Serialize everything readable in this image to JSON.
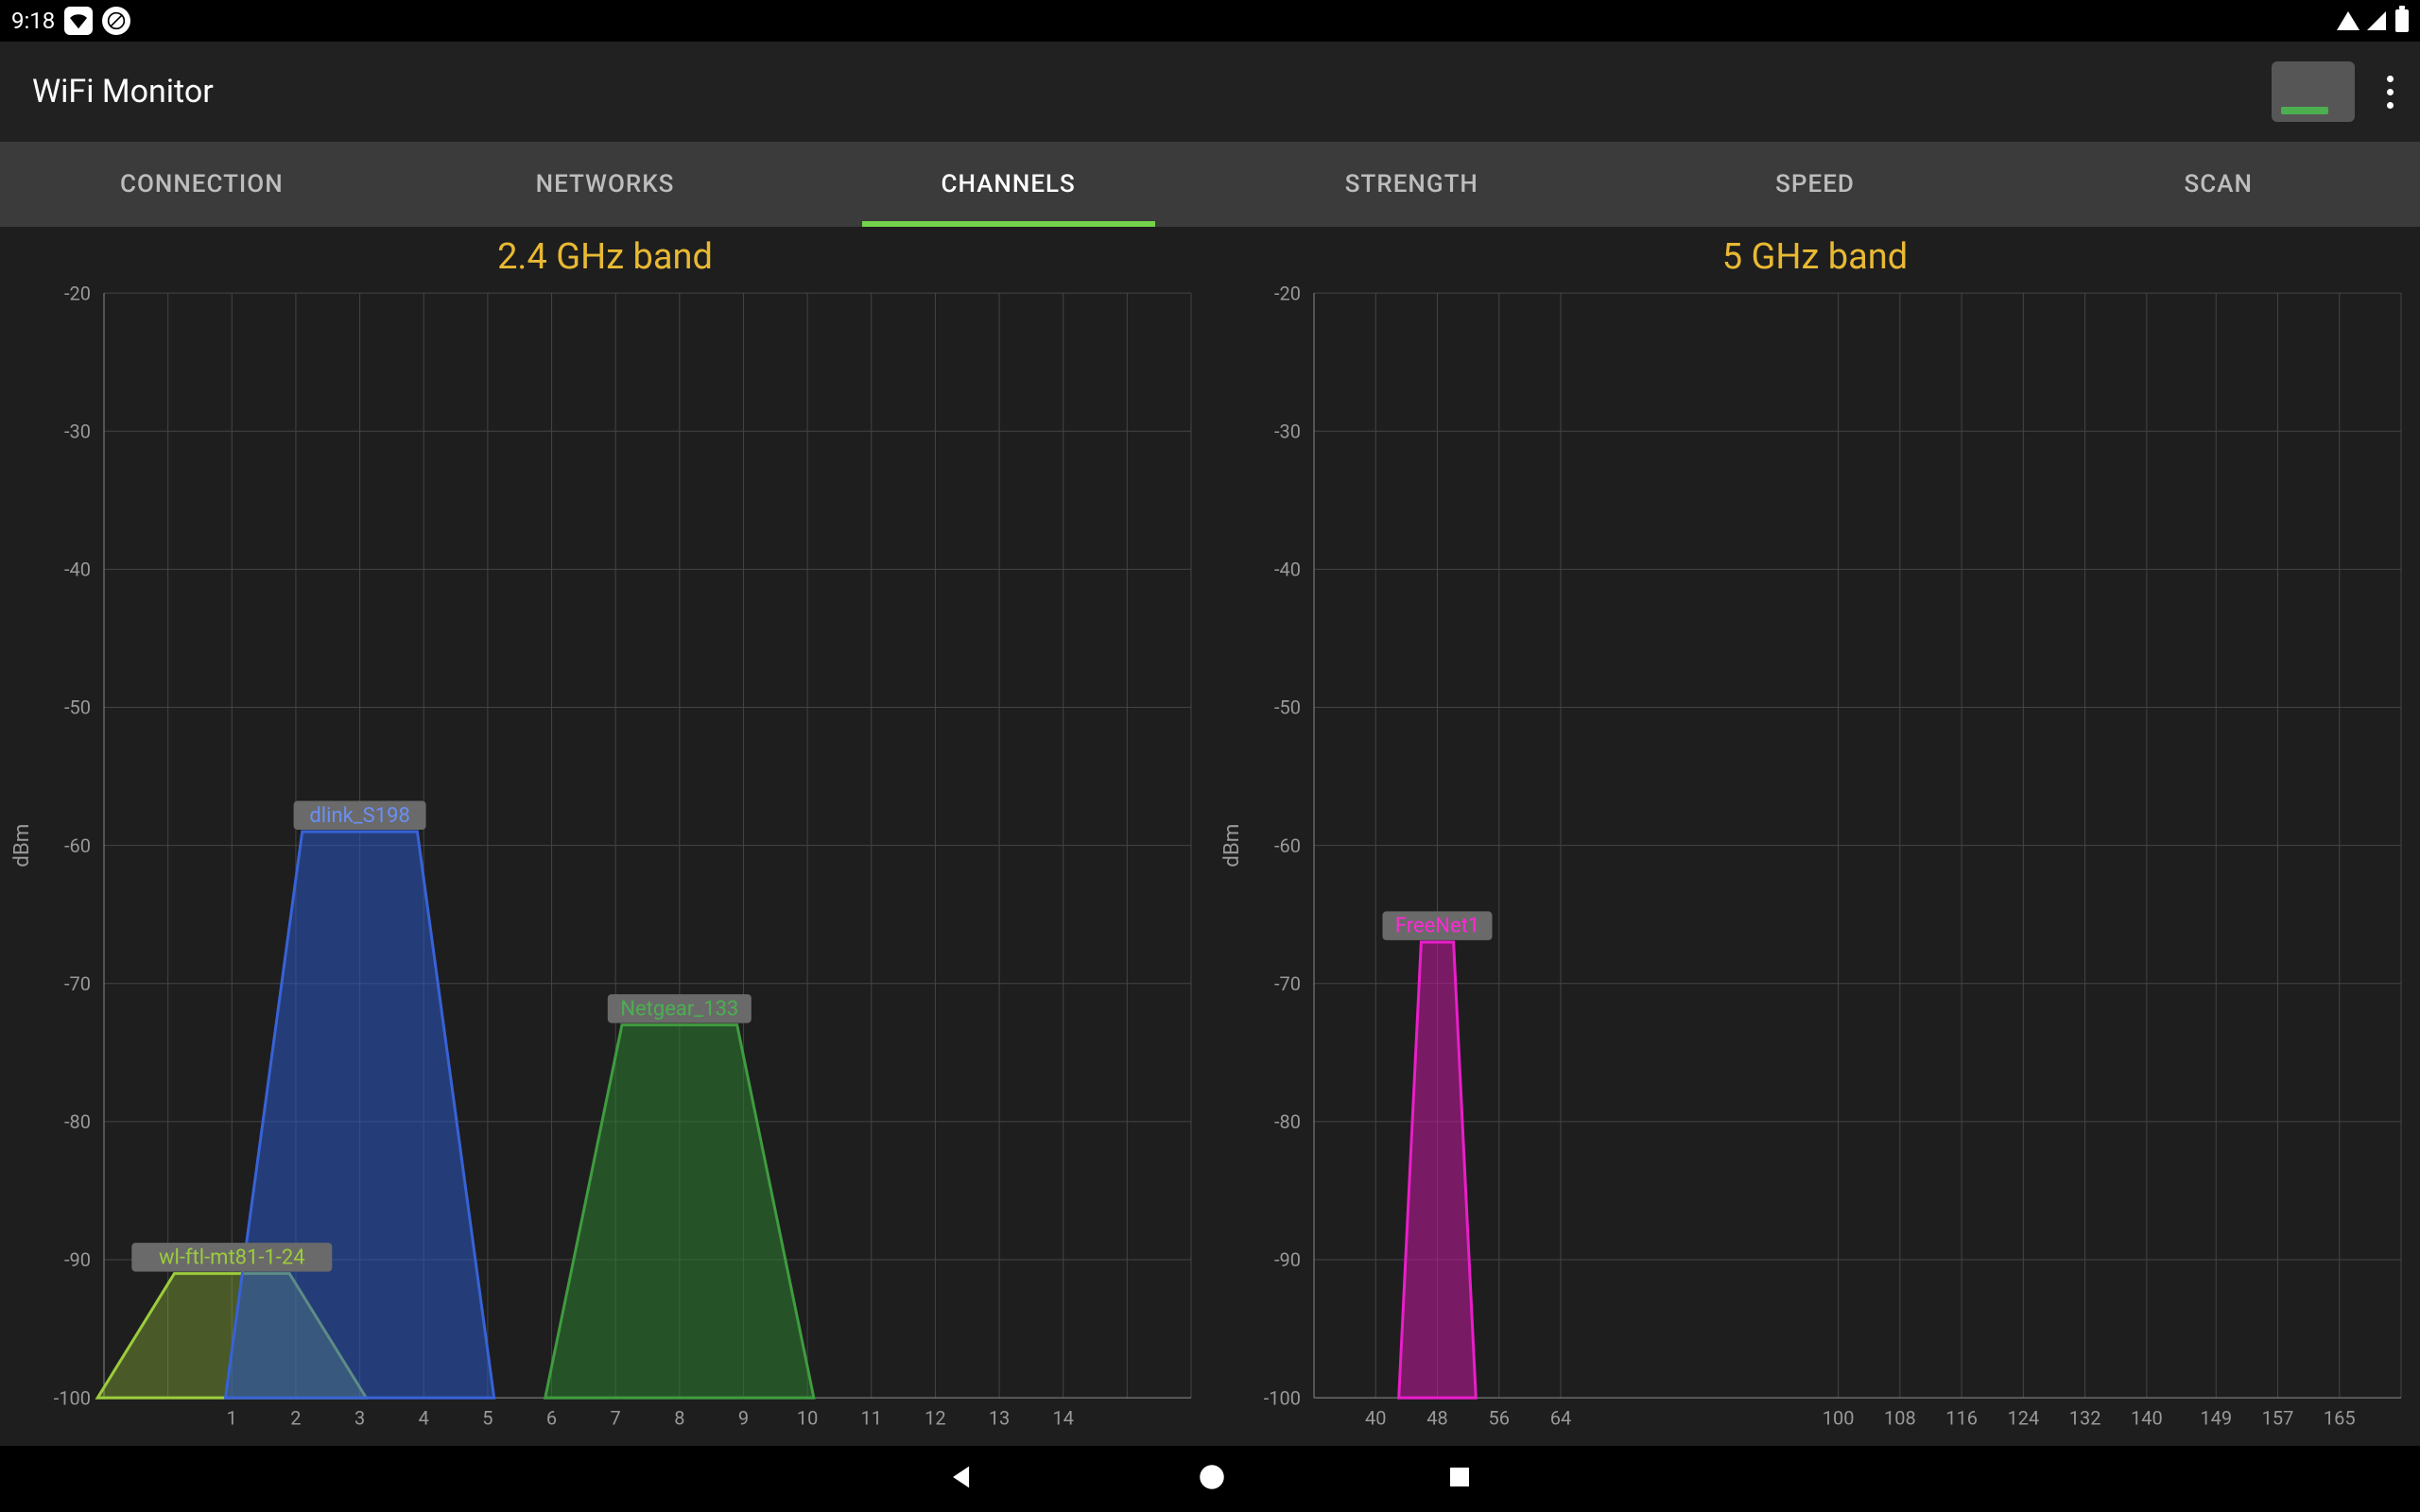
{
  "status_bar": {
    "time": "9:18",
    "left_icons": [
      "wifi-settings-icon",
      "no-data-icon"
    ]
  },
  "app_bar": {
    "title": "WiFi Monitor"
  },
  "tabs": {
    "items": [
      "CONNECTION",
      "NETWORKS",
      "CHANNELS",
      "STRENGTH",
      "SPEED",
      "SCAN"
    ],
    "active_index": 2,
    "active_underline_color": "#74d34a"
  },
  "charts": {
    "ylabel": "dBm",
    "ylim": [
      -100,
      -20
    ],
    "ytick_step": 10,
    "background_color": "#1e1e1e",
    "grid_color": "#444444",
    "axis_color": "#888888",
    "title_color": "#e8b933",
    "title_fontsize": 38,
    "tick_label_color": "#999999",
    "tick_label_fontsize": 20,
    "label_bg_color": "#6a6a6a",
    "label_fontsize": 22,
    "chart24": {
      "title": "2.4 GHz band",
      "x_start": -1,
      "x_end": 16,
      "xticks": [
        1,
        2,
        3,
        4,
        5,
        6,
        7,
        8,
        9,
        10,
        11,
        12,
        13,
        14
      ],
      "xgrid": [
        -1,
        0,
        1,
        2,
        3,
        4,
        5,
        6,
        7,
        8,
        9,
        10,
        11,
        12,
        13,
        14,
        15,
        16
      ],
      "networks": [
        {
          "name": "wl-ftl-mt81-1-24",
          "center_channel": 1,
          "top_half_width": 0.9,
          "base_half_width": 2.1,
          "signal_dbm": -91,
          "stroke_color": "#9ccc3c",
          "fill_color": "rgba(156,204,60,0.35)",
          "label_color": "#9ccc3c"
        },
        {
          "name": "dlink_S198",
          "center_channel": 3,
          "top_half_width": 0.9,
          "base_half_width": 2.1,
          "signal_dbm": -59,
          "stroke_color": "#3862d6",
          "fill_color": "rgba(41,87,194,0.55)",
          "label_color": "#6b8ff2"
        },
        {
          "name": "Netgear_133",
          "center_channel": 8,
          "top_half_width": 0.9,
          "base_half_width": 2.1,
          "signal_dbm": -73,
          "stroke_color": "#3f9c3f",
          "fill_color": "rgba(46,125,50,0.55)",
          "label_color": "#4caf50"
        }
      ]
    },
    "chart5": {
      "title": "5 GHz band",
      "x_start": 32,
      "x_end": 173,
      "xticks": [
        40,
        48,
        56,
        64,
        100,
        108,
        116,
        124,
        132,
        140,
        149,
        157,
        165
      ],
      "xgrid": [
        32,
        40,
        48,
        56,
        64,
        100,
        108,
        116,
        124,
        132,
        140,
        149,
        157,
        165,
        173
      ],
      "networks": [
        {
          "name": "FreeNet1",
          "center_channel": 48,
          "top_half_width": 2.1,
          "base_half_width": 5.0,
          "signal_dbm": -67,
          "stroke_color": "#e91ec9",
          "fill_color": "rgba(194,24,158,0.55)",
          "label_color": "#ff29d6"
        }
      ]
    }
  }
}
